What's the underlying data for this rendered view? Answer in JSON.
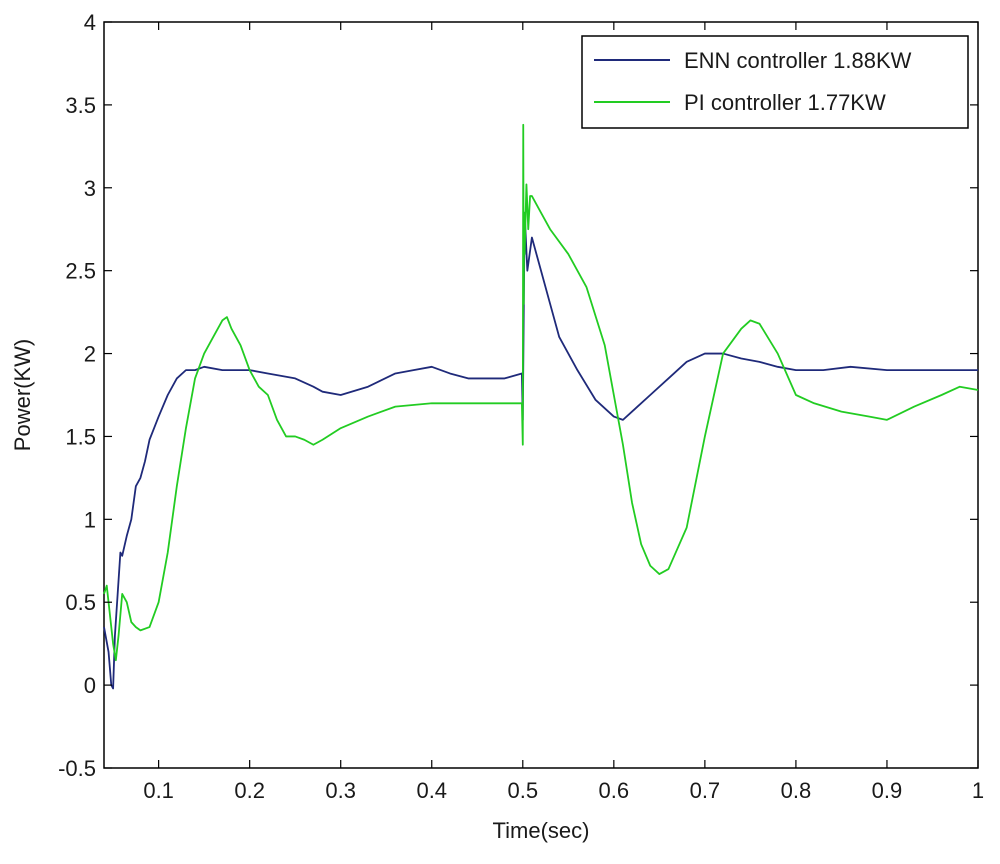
{
  "chart_data": {
    "type": "line",
    "title": "",
    "xlabel": "Time(sec)",
    "ylabel": "Power(KW)",
    "xlim": [
      0.04,
      1.0
    ],
    "ylim": [
      -0.5,
      4
    ],
    "x_ticks": [
      "0.1",
      "0.2",
      "0.3",
      "0.4",
      "0.5",
      "0.6",
      "0.7",
      "0.8",
      "0.9",
      "1"
    ],
    "y_ticks": [
      "-0.5",
      "0",
      "0.5",
      "1",
      "1.5",
      "2",
      "2.5",
      "3",
      "3.5",
      "4"
    ],
    "grid": false,
    "legend_position": "top-right",
    "series": [
      {
        "name": "ENN controller 1.88KW",
        "color": "#1f2a7a",
        "x": [
          0.04,
          0.045,
          0.048,
          0.05,
          0.052,
          0.055,
          0.058,
          0.06,
          0.065,
          0.07,
          0.075,
          0.08,
          0.085,
          0.09,
          0.095,
          0.1,
          0.11,
          0.12,
          0.13,
          0.14,
          0.15,
          0.17,
          0.2,
          0.22,
          0.25,
          0.27,
          0.28,
          0.3,
          0.33,
          0.36,
          0.38,
          0.4,
          0.42,
          0.44,
          0.46,
          0.48,
          0.499,
          0.5,
          0.502,
          0.505,
          0.51,
          0.52,
          0.53,
          0.54,
          0.56,
          0.58,
          0.6,
          0.61,
          0.62,
          0.64,
          0.66,
          0.68,
          0.7,
          0.72,
          0.74,
          0.76,
          0.78,
          0.8,
          0.83,
          0.86,
          0.9,
          0.93,
          0.96,
          1.0
        ],
        "y": [
          0.35,
          0.2,
          0.0,
          -0.02,
          0.3,
          0.55,
          0.8,
          0.78,
          0.9,
          1.0,
          1.2,
          1.25,
          1.35,
          1.48,
          1.55,
          1.62,
          1.75,
          1.85,
          1.9,
          1.9,
          1.92,
          1.9,
          1.9,
          1.88,
          1.85,
          1.8,
          1.77,
          1.75,
          1.8,
          1.88,
          1.9,
          1.92,
          1.88,
          1.85,
          1.85,
          1.85,
          1.88,
          1.6,
          2.85,
          2.5,
          2.7,
          2.5,
          2.3,
          2.1,
          1.9,
          1.72,
          1.62,
          1.6,
          1.65,
          1.75,
          1.85,
          1.95,
          2.0,
          2.0,
          1.97,
          1.95,
          1.92,
          1.9,
          1.9,
          1.92,
          1.9,
          1.9,
          1.9,
          1.9
        ]
      },
      {
        "name": "PI controller 1.77KW",
        "color": "#22cc22",
        "x": [
          0.04,
          0.043,
          0.046,
          0.05,
          0.053,
          0.056,
          0.06,
          0.065,
          0.07,
          0.075,
          0.08,
          0.09,
          0.1,
          0.11,
          0.12,
          0.13,
          0.14,
          0.15,
          0.16,
          0.17,
          0.175,
          0.18,
          0.19,
          0.2,
          0.21,
          0.22,
          0.23,
          0.24,
          0.25,
          0.26,
          0.27,
          0.28,
          0.3,
          0.33,
          0.36,
          0.4,
          0.43,
          0.46,
          0.499,
          0.5,
          0.5005,
          0.501,
          0.5015,
          0.502,
          0.504,
          0.506,
          0.508,
          0.51,
          0.52,
          0.53,
          0.55,
          0.57,
          0.59,
          0.6,
          0.61,
          0.62,
          0.63,
          0.64,
          0.65,
          0.66,
          0.68,
          0.7,
          0.72,
          0.74,
          0.75,
          0.76,
          0.78,
          0.8,
          0.82,
          0.85,
          0.88,
          0.9,
          0.93,
          0.96,
          0.98,
          1.0
        ],
        "y": [
          0.55,
          0.6,
          0.45,
          0.25,
          0.15,
          0.3,
          0.55,
          0.5,
          0.38,
          0.35,
          0.33,
          0.35,
          0.5,
          0.8,
          1.2,
          1.55,
          1.85,
          2.0,
          2.1,
          2.2,
          2.22,
          2.15,
          2.05,
          1.9,
          1.8,
          1.75,
          1.6,
          1.5,
          1.5,
          1.48,
          1.45,
          1.48,
          1.55,
          1.62,
          1.68,
          1.7,
          1.7,
          1.7,
          1.7,
          1.45,
          3.38,
          2.3,
          2.85,
          2.6,
          3.02,
          2.75,
          2.95,
          2.95,
          2.85,
          2.75,
          2.6,
          2.4,
          2.05,
          1.75,
          1.45,
          1.1,
          0.85,
          0.72,
          0.67,
          0.7,
          0.95,
          1.5,
          2.0,
          2.15,
          2.2,
          2.18,
          2.0,
          1.75,
          1.7,
          1.65,
          1.62,
          1.6,
          1.68,
          1.75,
          1.8,
          1.78
        ]
      }
    ]
  }
}
